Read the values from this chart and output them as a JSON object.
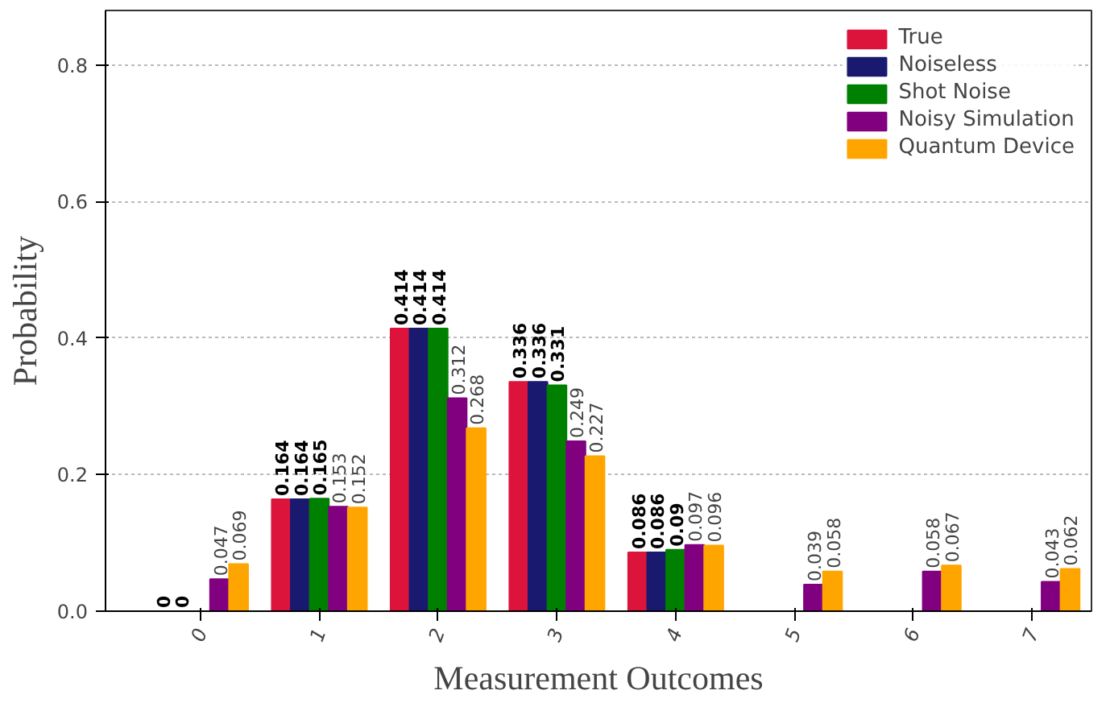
{
  "chart_data": {
    "type": "bar",
    "xlabel": "Measurement Outcomes",
    "ylabel": "Probability",
    "categories": [
      "0",
      "1",
      "2",
      "3",
      "4",
      "5",
      "6",
      "7"
    ],
    "series": [
      {
        "name": "True",
        "color": "#dc143c",
        "values": [
          0,
          0.164,
          0.414,
          0.336,
          0.086,
          null,
          null,
          null
        ]
      },
      {
        "name": "Noiseless",
        "color": "#191970",
        "values": [
          0,
          0.164,
          0.414,
          0.336,
          0.086,
          null,
          null,
          null
        ]
      },
      {
        "name": "Shot Noise",
        "color": "#008000",
        "values": [
          null,
          0.165,
          0.414,
          0.331,
          0.09,
          null,
          null,
          null
        ]
      },
      {
        "name": "Noisy Simulation",
        "color": "#800080",
        "values": [
          0.047,
          0.153,
          0.312,
          0.249,
          0.097,
          0.039,
          0.058,
          0.043
        ]
      },
      {
        "name": "Quantum Device",
        "color": "#ffa500",
        "values": [
          0.069,
          0.152,
          0.268,
          0.227,
          0.096,
          0.058,
          0.067,
          0.062
        ]
      }
    ],
    "ylim": [
      0,
      0.88
    ],
    "yticks": [
      {
        "value": 0,
        "label": "0.0"
      },
      {
        "value": 0.2,
        "label": "0.2"
      },
      {
        "value": 0.4,
        "label": "0.4"
      },
      {
        "value": 0.6,
        "label": "0.6"
      },
      {
        "value": 0.8,
        "label": "0.8"
      }
    ],
    "grid": "y",
    "legend": "top right",
    "data_labels": true
  }
}
